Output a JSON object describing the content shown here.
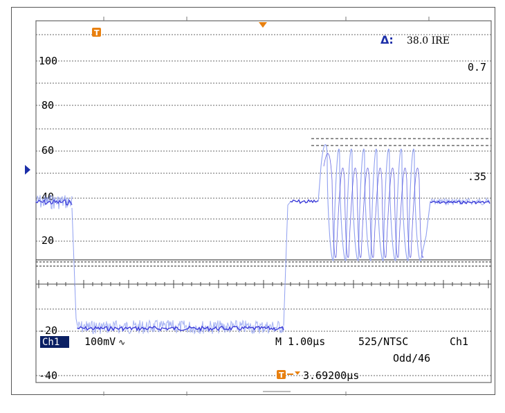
{
  "colors": {
    "trace": "#3b3bd8",
    "trace_light": "#8f9ff0",
    "grid": "#555555",
    "marker": "#e8800f",
    "ch1_bg": "#0a1f63",
    "ch1_text": "#ffffff"
  },
  "scope": {
    "delta_symbol": "Δ:",
    "delta_value": "38.0 IRE",
    "ch1_badge": "Ch1",
    "volts_div": "100mV",
    "volts_div_symbol": "∿",
    "timebase": "M 1.00μs",
    "standard": "525/NTSC",
    "trigger_source": "Ch1",
    "line_select": "Odd/46",
    "trigger_position": "3.69200μs",
    "volts_scale_top": "0.7",
    "volts_scale_mid": ".35"
  },
  "ire_scale": {
    "labels": [
      "100",
      "80",
      "60",
      "40",
      "20",
      "20",
      "40"
    ],
    "minus_prefix": "-"
  },
  "icons": {
    "trigger_marker": "trigger-T-icon",
    "trigger_arrow": "trigger-arrow-icon",
    "ground_marker": "ground-level-arrow-icon"
  }
}
